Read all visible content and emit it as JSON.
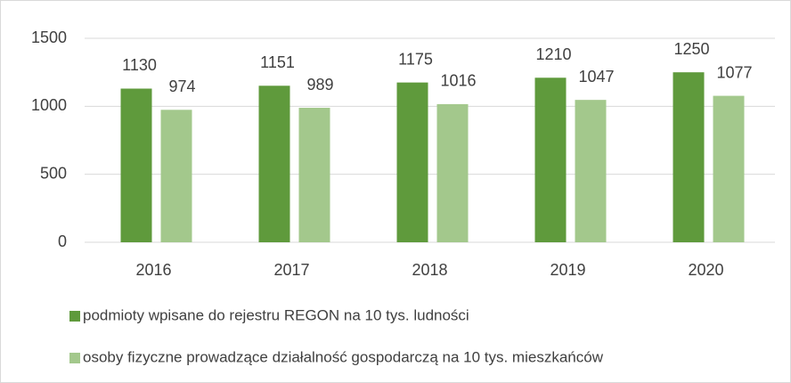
{
  "chart_data": {
    "type": "bar",
    "categories": [
      "2016",
      "2017",
      "2018",
      "2019",
      "2020"
    ],
    "series": [
      {
        "name": "podmioty wpisane do rejestru REGON na 10 tys. ludności",
        "color": "#5f9a3c",
        "values": [
          1130,
          1151,
          1175,
          1210,
          1250
        ]
      },
      {
        "name": "osoby fizyczne prowadzące działalność gospodarczą na 10 tys. mieszkańców",
        "color": "#a3c88c",
        "values": [
          974,
          989,
          1016,
          1047,
          1077
        ]
      }
    ],
    "ylim": [
      0,
      1500
    ],
    "yticks": [
      0,
      500,
      1000,
      1500
    ],
    "grid": true,
    "legend": "bottom"
  }
}
